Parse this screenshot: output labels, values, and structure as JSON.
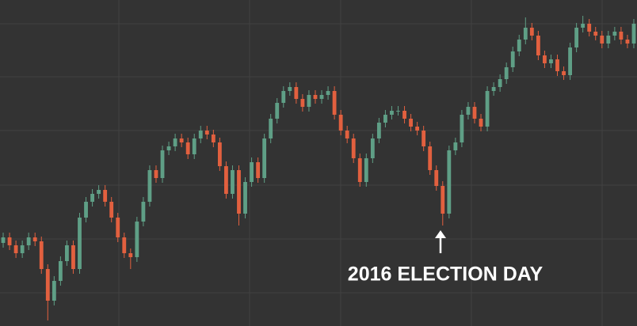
{
  "chart_data": {
    "type": "candlestick",
    "annotation": "2016 ELECTION DAY",
    "ylim": [
      0,
      412
    ],
    "up_color": "#5f9f86",
    "down_color": "#e2603f",
    "open": [
      105,
      112,
      102,
      92,
      102,
      112,
      107,
      72,
      32,
      57,
      82,
      102,
      72,
      137,
      157,
      167,
      172,
      157,
      137,
      112,
      92,
      87,
      132,
      157,
      197,
      187,
      222,
      227,
      237,
      232,
      217,
      237,
      247,
      242,
      232,
      202,
      167,
      197,
      142,
      182,
      207,
      187,
      237,
      262,
      282,
      297,
      302,
      287,
      277,
      292,
      287,
      292,
      297,
      267,
      247,
      237,
      212,
      182,
      212,
      237,
      257,
      267,
      272,
      272,
      262,
      252,
      247,
      227,
      197,
      177,
      142,
      222,
      232,
      267,
      277,
      262,
      252,
      297,
      302,
      312,
      327,
      347,
      362,
      377,
      367,
      342,
      332,
      337,
      322,
      317,
      352,
      377,
      382,
      372,
      367,
      357,
      367,
      372,
      362,
      357
    ],
    "high": [
      118,
      118,
      108,
      108,
      118,
      118,
      113,
      78,
      63,
      88,
      108,
      108,
      143,
      163,
      173,
      178,
      178,
      163,
      143,
      118,
      98,
      138,
      163,
      203,
      203,
      228,
      233,
      243,
      243,
      238,
      243,
      253,
      253,
      248,
      238,
      208,
      203,
      203,
      188,
      213,
      213,
      243,
      268,
      288,
      303,
      308,
      308,
      293,
      298,
      298,
      298,
      303,
      303,
      273,
      253,
      243,
      218,
      218,
      243,
      263,
      273,
      278,
      278,
      278,
      268,
      258,
      253,
      233,
      203,
      183,
      228,
      238,
      273,
      283,
      283,
      268,
      303,
      308,
      318,
      333,
      353,
      368,
      390,
      383,
      373,
      348,
      343,
      343,
      328,
      358,
      383,
      392,
      388,
      378,
      373,
      373,
      378,
      378,
      368,
      388
    ],
    "low": [
      99,
      96,
      86,
      86,
      96,
      101,
      66,
      7,
      26,
      51,
      76,
      66,
      66,
      131,
      151,
      161,
      151,
      131,
      106,
      86,
      72,
      81,
      126,
      151,
      181,
      181,
      216,
      221,
      226,
      211,
      211,
      231,
      236,
      226,
      196,
      161,
      161,
      127,
      136,
      176,
      181,
      181,
      231,
      256,
      276,
      291,
      281,
      271,
      271,
      281,
      281,
      286,
      261,
      241,
      231,
      206,
      176,
      176,
      206,
      231,
      251,
      261,
      266,
      256,
      246,
      241,
      221,
      191,
      171,
      127,
      136,
      216,
      226,
      261,
      256,
      246,
      246,
      291,
      296,
      306,
      321,
      341,
      356,
      361,
      336,
      326,
      326,
      316,
      311,
      311,
      346,
      371,
      366,
      361,
      351,
      351,
      361,
      356,
      351,
      351
    ],
    "close": [
      112,
      102,
      92,
      102,
      112,
      107,
      72,
      32,
      57,
      82,
      102,
      72,
      137,
      157,
      167,
      172,
      157,
      137,
      112,
      92,
      87,
      132,
      157,
      197,
      187,
      222,
      227,
      237,
      232,
      217,
      237,
      247,
      242,
      232,
      202,
      167,
      197,
      142,
      182,
      207,
      187,
      237,
      262,
      282,
      297,
      302,
      287,
      277,
      292,
      287,
      292,
      297,
      267,
      247,
      237,
      212,
      182,
      212,
      237,
      257,
      267,
      272,
      272,
      262,
      252,
      247,
      227,
      197,
      177,
      142,
      222,
      232,
      267,
      277,
      262,
      252,
      297,
      302,
      312,
      327,
      347,
      362,
      377,
      367,
      342,
      332,
      337,
      322,
      317,
      352,
      377,
      382,
      372,
      367,
      357,
      367,
      372,
      362,
      357,
      382
    ]
  }
}
